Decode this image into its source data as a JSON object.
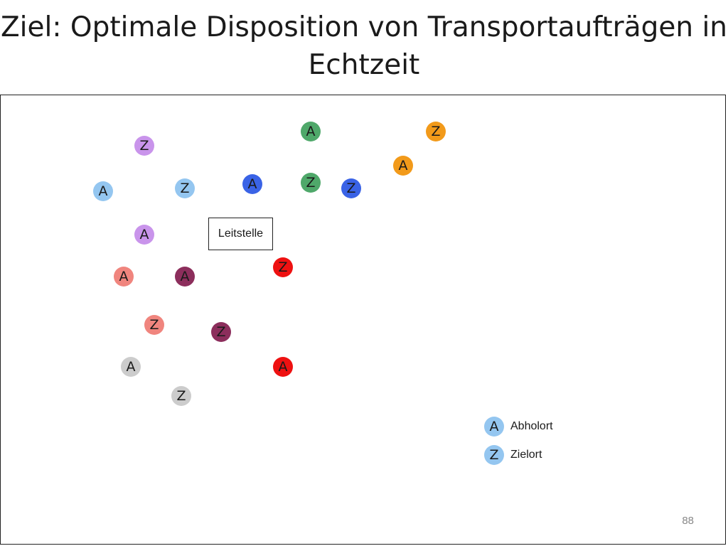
{
  "slide": {
    "title_line1": "Ziel: Optimale Disposition von Transportaufträgen in",
    "title_line2": "Echtzeit",
    "page_number": "88"
  },
  "center": {
    "label": "Leitstelle"
  },
  "colors": {
    "light_blue": "#94c6f0",
    "lilac": "#c994eb",
    "green": "#4fa86a",
    "orange": "#f29a1a",
    "blue": "#3a63e6",
    "red": "#ee1111",
    "salmon": "#f0857e",
    "maroon": "#8c2e5c",
    "gray": "#cccccc"
  },
  "orders": [
    {
      "color": "light_blue",
      "pickup_label": "A",
      "destination_label": "Z"
    },
    {
      "color": "lilac",
      "pickup_label": "A",
      "destination_label": "Z"
    },
    {
      "color": "green",
      "pickup_label": "A",
      "destination_label": "Z"
    },
    {
      "color": "orange",
      "pickup_label": "A",
      "destination_label": "Z"
    },
    {
      "color": "blue",
      "pickup_label": "A",
      "destination_label": "Z"
    },
    {
      "color": "red",
      "pickup_label": "A",
      "destination_label": "Z"
    },
    {
      "color": "salmon",
      "pickup_label": "A",
      "destination_label": "Z"
    },
    {
      "color": "maroon",
      "pickup_label": "A",
      "destination_label": "Z"
    },
    {
      "color": "gray",
      "pickup_label": "A",
      "destination_label": "Z"
    }
  ],
  "legend": {
    "pickup": {
      "symbol": "A",
      "label": "Abholort"
    },
    "destination": {
      "symbol": "Z",
      "label": "Zielort"
    }
  }
}
